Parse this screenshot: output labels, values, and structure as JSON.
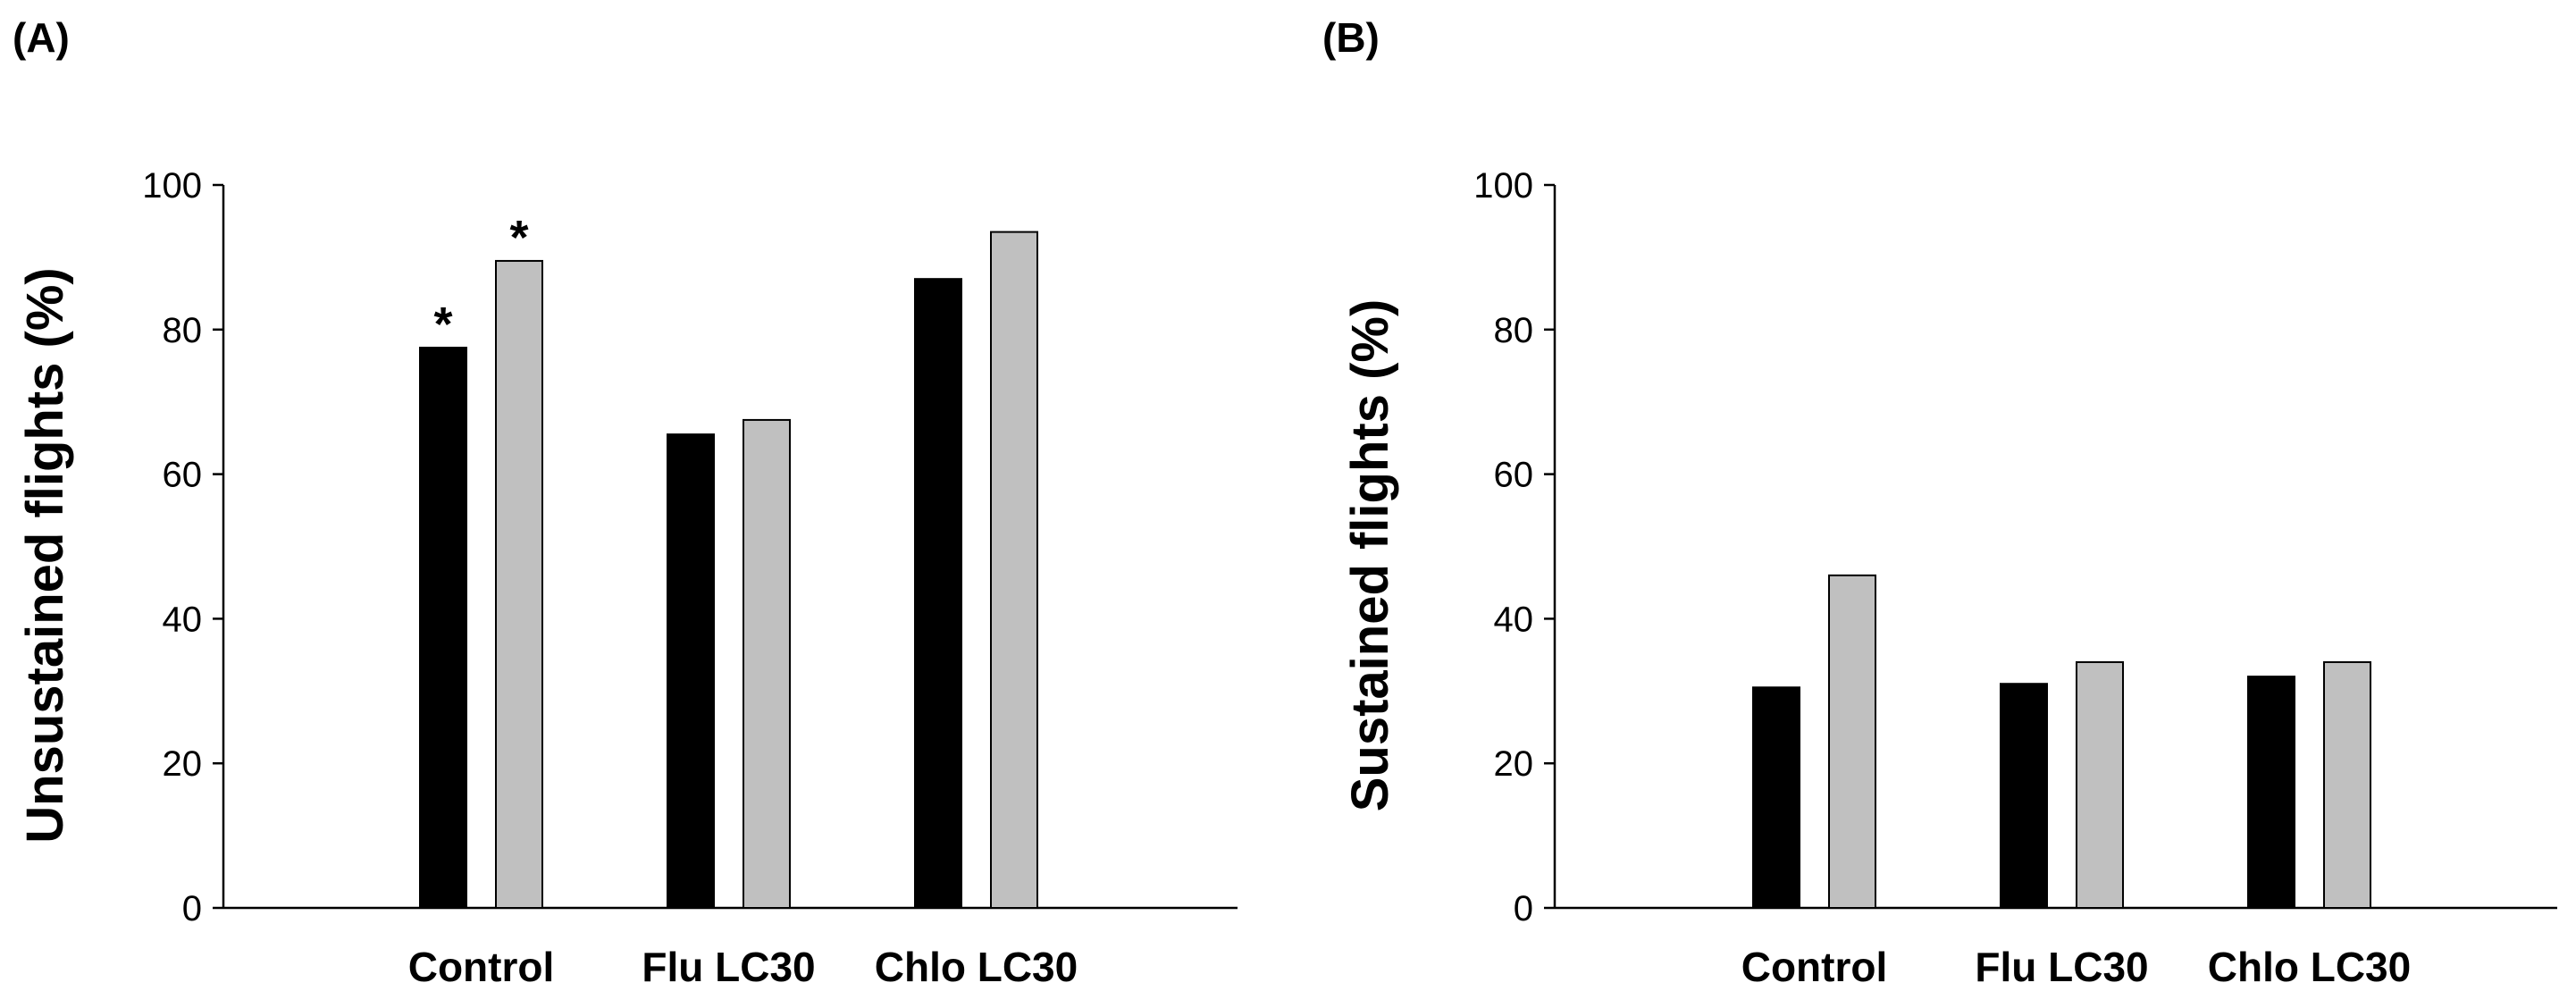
{
  "chart_data": [
    {
      "type": "bar",
      "panel_label": "(A)",
      "title": "",
      "xlabel": "",
      "ylabel": "Unsustained flights (%)",
      "ylim": [
        0,
        100
      ],
      "yticks": [
        0,
        20,
        40,
        60,
        80,
        100
      ],
      "ytick_labels": [
        "0",
        "20",
        "40",
        "60",
        "80",
        "100"
      ],
      "categories": [
        "Control",
        "Flu LC30",
        "Chlo LC30"
      ],
      "series": [
        {
          "name": "series-1",
          "color": "#000000",
          "values": [
            77.5,
            65.5,
            87
          ]
        },
        {
          "name": "series-2",
          "color": "#c0c0c0",
          "values": [
            89.5,
            67.5,
            93.5
          ]
        }
      ],
      "annotations": [
        {
          "category": 0,
          "series": 0,
          "text": "*"
        },
        {
          "category": 0,
          "series": 1,
          "text": "*"
        }
      ],
      "grid": false,
      "legend": "none"
    },
    {
      "type": "bar",
      "panel_label": "(B)",
      "title": "",
      "xlabel": "",
      "ylabel": "Sustained flights (%)",
      "ylim": [
        0,
        100
      ],
      "yticks": [
        0,
        20,
        40,
        60,
        80,
        100
      ],
      "ytick_labels": [
        "0",
        "20",
        "40",
        "60",
        "80",
        "100"
      ],
      "categories": [
        "Control",
        "Flu LC30",
        "Chlo LC30"
      ],
      "series": [
        {
          "name": "series-1",
          "color": "#000000",
          "values": [
            30.5,
            31,
            32
          ]
        },
        {
          "name": "series-2",
          "color": "#c0c0c0",
          "values": [
            46,
            34,
            34
          ]
        }
      ],
      "annotations": [],
      "grid": false,
      "legend": "none"
    }
  ]
}
